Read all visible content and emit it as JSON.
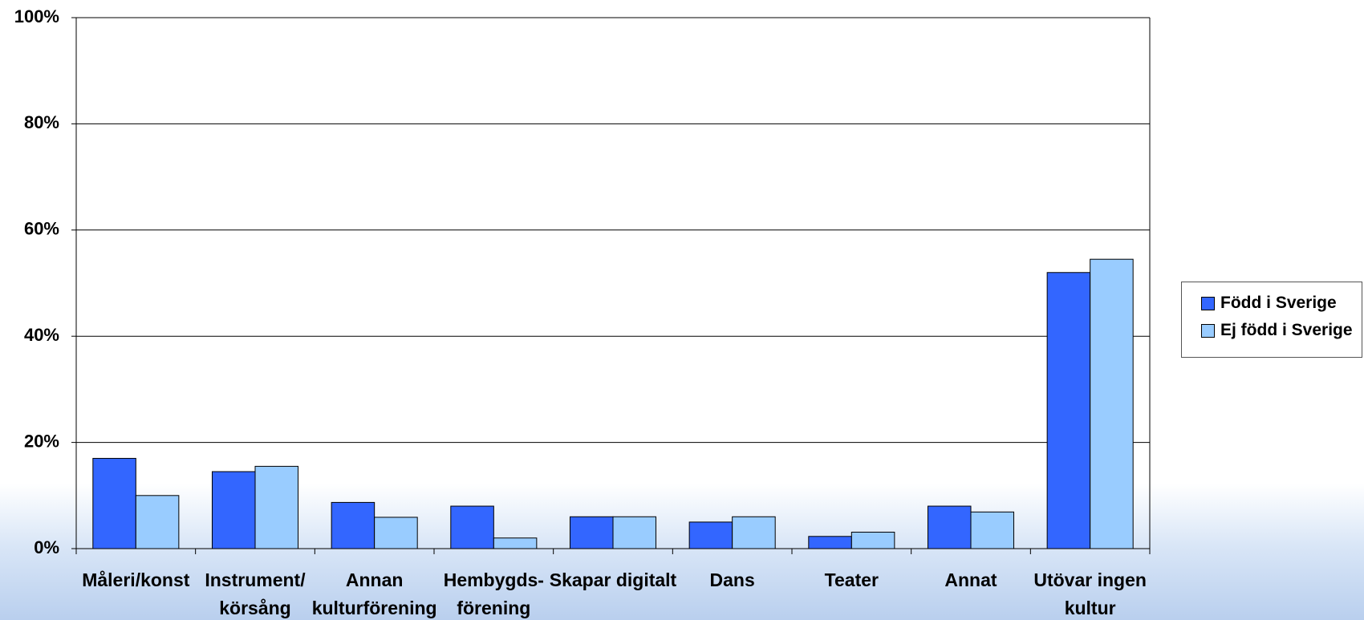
{
  "chart_data": {
    "type": "bar",
    "categories": [
      "Måleri/konst",
      "Instrument/\nkörsång",
      "Annan\nkulturförening",
      "Hembygds-\nförening",
      "Skapar digitalt",
      "Dans",
      "Teater",
      "Annat",
      "Utövar ingen\nkultur"
    ],
    "series": [
      {
        "name": "Född i Sverige",
        "color": "#3366ff",
        "values": [
          17,
          14.5,
          8.7,
          8,
          6,
          5,
          2.3,
          8,
          52
        ]
      },
      {
        "name": "Ej född i Sverige",
        "color": "#99ccff",
        "values": [
          10,
          15.5,
          5.9,
          2,
          6,
          6,
          3.1,
          6.9,
          54.5
        ]
      }
    ],
    "ylim": [
      0,
      100
    ],
    "yticks": [
      {
        "value": 0,
        "label": "0%"
      },
      {
        "value": 20,
        "label": "20%"
      },
      {
        "value": 40,
        "label": "40%"
      },
      {
        "value": 60,
        "label": "60%"
      },
      {
        "value": 80,
        "label": "80%"
      },
      {
        "value": 100,
        "label": "100%"
      }
    ],
    "grid": true,
    "legend": "right"
  }
}
